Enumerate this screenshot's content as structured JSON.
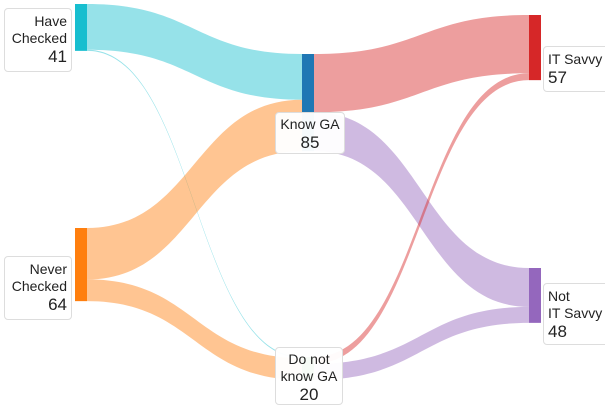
{
  "sankey": {
    "nodes": [
      {
        "id": "have_checked",
        "label": "Have Checked",
        "value": 41,
        "color": "#17becf"
      },
      {
        "id": "never_checked",
        "label": "Never Checked",
        "value": 64,
        "color": "#ff7f0e"
      },
      {
        "id": "know_ga",
        "label": "Know GA",
        "value": 85,
        "color": "#1f77b4"
      },
      {
        "id": "dont_know_ga",
        "label": "Do not know GA",
        "value": 20,
        "color": "#2ca02c"
      },
      {
        "id": "it_savvy",
        "label": "IT Savvy",
        "value": 57,
        "color": "#d62728"
      },
      {
        "id": "not_it_savvy",
        "label": "Not IT Savvy",
        "value": 48,
        "color": "#9467bd"
      }
    ],
    "links": [
      {
        "source": "have_checked",
        "target": "know_ga",
        "value": 40,
        "color": "#17becf"
      },
      {
        "source": "have_checked",
        "target": "dont_know_ga",
        "value": 1,
        "color": "#17becf"
      },
      {
        "source": "never_checked",
        "target": "know_ga",
        "value": 45,
        "color": "#ff7f0e"
      },
      {
        "source": "never_checked",
        "target": "dont_know_ga",
        "value": 19,
        "color": "#ff7f0e"
      },
      {
        "source": "know_ga",
        "target": "it_savvy",
        "value": 51,
        "color": "#d62728"
      },
      {
        "source": "know_ga",
        "target": "not_it_savvy",
        "value": 34,
        "color": "#9467bd"
      },
      {
        "source": "dont_know_ga",
        "target": "it_savvy",
        "value": 6,
        "color": "#d62728"
      },
      {
        "source": "dont_know_ga",
        "target": "not_it_savvy",
        "value": 14,
        "color": "#9467bd"
      }
    ]
  },
  "labels": {
    "have_checked": {
      "line1": "Have",
      "line2": "Checked",
      "value": "41"
    },
    "never_checked": {
      "line1": "Never",
      "line2": "Checked",
      "value": "64"
    },
    "know_ga": {
      "line1": "Know GA",
      "value": "85"
    },
    "dont_know_ga": {
      "line1": "Do not",
      "line2": "know GA",
      "value": "20"
    },
    "it_savvy": {
      "line1": "IT Savvy",
      "value": "57"
    },
    "not_it_savvy": {
      "line1": "Not",
      "line2": "IT Savvy",
      "value": "48"
    }
  }
}
